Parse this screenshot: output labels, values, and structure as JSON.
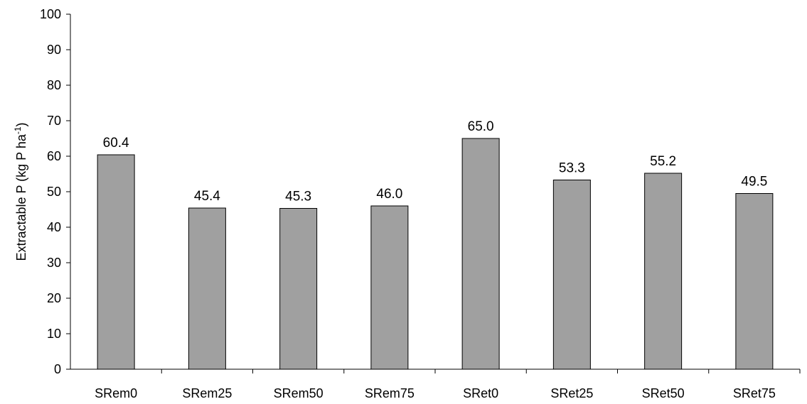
{
  "chart_data": {
    "type": "bar",
    "title": "",
    "xlabel": "",
    "ylabel": {
      "main": "Extractable P  (kg P ha",
      "sup": "-1",
      "close": ")"
    },
    "categories": [
      "SRem0",
      "SRem25",
      "SRem50",
      "SRem75",
      "SRet0",
      "SRet25",
      "SRet50",
      "SRet75"
    ],
    "values": [
      60.4,
      45.4,
      45.3,
      46.0,
      65.0,
      53.3,
      55.2,
      49.5
    ],
    "data_labels": [
      "60.4",
      "45.4",
      "45.3",
      "46.0",
      "65.0",
      "53.3",
      "55.2",
      "49.5"
    ],
    "ylim": [
      0,
      100
    ],
    "yticks": [
      0,
      10,
      20,
      30,
      40,
      50,
      60,
      70,
      80,
      90,
      100
    ],
    "grid": false,
    "legend": "none",
    "colors": {
      "bar_fill": "#a0a0a0",
      "bar_stroke": "#000000",
      "axis": "#000000"
    }
  }
}
